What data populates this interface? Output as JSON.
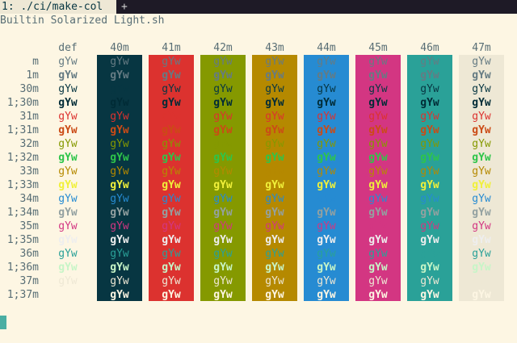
{
  "tab": {
    "label": "1: ./ci/make-col",
    "add_label": "+"
  },
  "title": "Builtin Solarized Light.sh",
  "sample_text": "gYw",
  "columns": [
    {
      "header": "def",
      "bg": ""
    },
    {
      "header": "40m",
      "bg": "#073642"
    },
    {
      "header": "41m",
      "bg": "#dc322f"
    },
    {
      "header": "42m",
      "bg": "#859900"
    },
    {
      "header": "43m",
      "bg": "#b58900"
    },
    {
      "header": "44m",
      "bg": "#268bd2"
    },
    {
      "header": "45m",
      "bg": "#d33682"
    },
    {
      "header": "46m",
      "bg": "#2aa198"
    },
    {
      "header": "47m",
      "bg": "#eee8d5"
    }
  ],
  "rows": [
    {
      "label": "m",
      "fg": "#657b83",
      "bold": false
    },
    {
      "label": "1m",
      "fg": "#657b83",
      "bold": true
    },
    {
      "label": "30m",
      "fg": "#073642",
      "bold": false
    },
    {
      "label": "1;30m",
      "fg": "#002b36",
      "bold": true
    },
    {
      "label": "31m",
      "fg": "#dc322f",
      "bold": false
    },
    {
      "label": "1;31m",
      "fg": "#cb4b16",
      "bold": true
    },
    {
      "label": "32m",
      "fg": "#859900",
      "bold": false
    },
    {
      "label": "1;32m",
      "fg": "#2ec54a",
      "bold": true
    },
    {
      "label": "33m",
      "fg": "#b58900",
      "bold": false
    },
    {
      "label": "1;33m",
      "fg": "#f0f03a",
      "bold": true
    },
    {
      "label": "34m",
      "fg": "#268bd2",
      "bold": false
    },
    {
      "label": "1;34m",
      "fg": "#93a1a1",
      "bold": true
    },
    {
      "label": "35m",
      "fg": "#d33682",
      "bold": false
    },
    {
      "label": "1;35m",
      "fg": "#eeeeee",
      "bold": true
    },
    {
      "label": "36m",
      "fg": "#2aa198",
      "bold": false
    },
    {
      "label": "1;36m",
      "fg": "#c7f5c7",
      "bold": true
    },
    {
      "label": "37m",
      "fg": "#eee8d5",
      "bold": false
    },
    {
      "label": "1;37m",
      "fg": "#fdf6e3",
      "bold": true
    }
  ]
}
